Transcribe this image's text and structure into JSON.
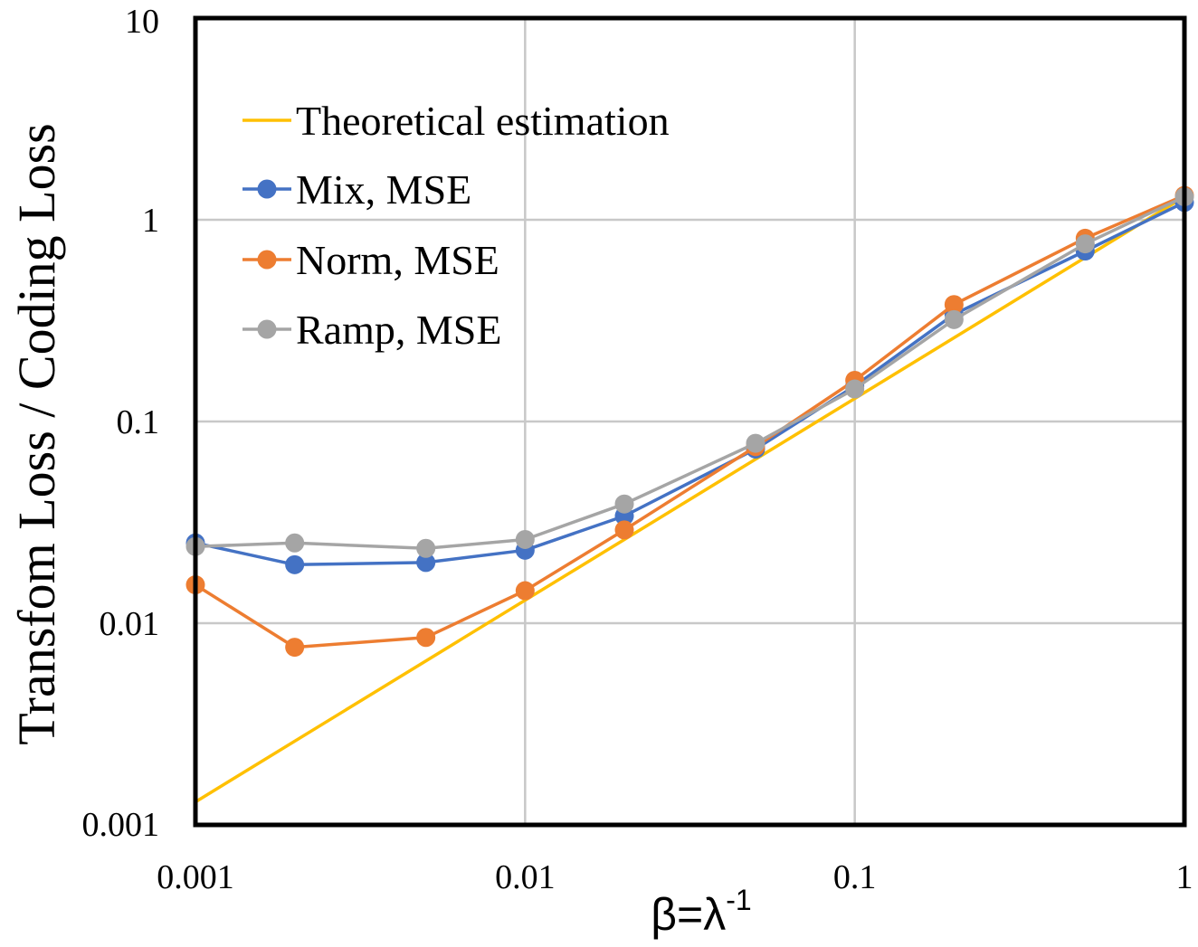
{
  "chart_data": {
    "type": "line",
    "xscale": "log",
    "yscale": "log",
    "xlabel_main": "β=λ",
    "xlabel_sup": "-1",
    "ylabel": "Transfom Loss / Coding Loss",
    "xlim": [
      0.001,
      1
    ],
    "ylim": [
      0.001,
      10
    ],
    "x_ticks": [
      0.001,
      0.01,
      0.1,
      1
    ],
    "x_tick_labels": [
      "0.001",
      "0.01",
      "0.1",
      "1"
    ],
    "y_ticks": [
      0.001,
      0.01,
      0.1,
      1,
      10
    ],
    "y_tick_labels": [
      "0.001",
      "0.01",
      "0.1",
      "1",
      "10"
    ],
    "grid": true,
    "legend_position": "top-left",
    "series": [
      {
        "name": "Theoretical estimation",
        "color": "#FFC000",
        "markers": false,
        "x": [
          0.001,
          1
        ],
        "y": [
          0.0013,
          1.3
        ]
      },
      {
        "name": "Mix, MSE",
        "color": "#4472C4",
        "markers": true,
        "x": [
          0.001,
          0.002,
          0.005,
          0.01,
          0.02,
          0.05,
          0.1,
          0.2,
          0.5,
          1
        ],
        "y": [
          0.025,
          0.0195,
          0.02,
          0.023,
          0.034,
          0.073,
          0.15,
          0.34,
          0.7,
          1.22
        ]
      },
      {
        "name": "Norm, MSE",
        "color": "#ED7D31",
        "markers": true,
        "x": [
          0.001,
          0.002,
          0.005,
          0.01,
          0.02,
          0.05,
          0.1,
          0.2,
          0.5,
          1
        ],
        "y": [
          0.0155,
          0.0076,
          0.0085,
          0.0145,
          0.029,
          0.075,
          0.16,
          0.38,
          0.81,
          1.32
        ]
      },
      {
        "name": "Ramp, MSE",
        "color": "#A5A5A5",
        "markers": true,
        "x": [
          0.001,
          0.002,
          0.005,
          0.01,
          0.02,
          0.05,
          0.1,
          0.2,
          0.5,
          1
        ],
        "y": [
          0.024,
          0.025,
          0.0235,
          0.026,
          0.039,
          0.078,
          0.145,
          0.32,
          0.76,
          1.3
        ]
      }
    ]
  }
}
